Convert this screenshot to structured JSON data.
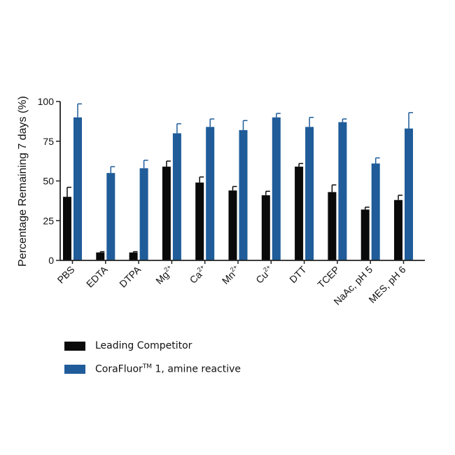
{
  "colors": {
    "competitor": "#0a0a0a",
    "corafluor": "#1f5c99",
    "axis": "#222222"
  },
  "chart_data": {
    "type": "bar",
    "ylabel": "Percentage Remaining 7 days (%)",
    "xlabel": "",
    "ylim": [
      0,
      100
    ],
    "yticks": [
      "0",
      "25",
      "50",
      "75",
      "100"
    ],
    "grid": false,
    "legend_position": "bottom-left",
    "categories": [
      {
        "base": "PBS",
        "sup": ""
      },
      {
        "base": "EDTA",
        "sup": ""
      },
      {
        "base": "DTPA",
        "sup": ""
      },
      {
        "base": "Mg",
        "sup": "2+"
      },
      {
        "base": "Ca",
        "sup": "2+"
      },
      {
        "base": "Mn",
        "sup": "2+"
      },
      {
        "base": "Cu",
        "sup": "2+"
      },
      {
        "base": "DTT",
        "sup": ""
      },
      {
        "base": "TCEP",
        "sup": ""
      },
      {
        "base": "NaAc, pH 5",
        "sup": ""
      },
      {
        "base": "MES, pH 6",
        "sup": ""
      }
    ],
    "series": [
      {
        "name": "Leading Competitor",
        "values": [
          40,
          5,
          5,
          59,
          49,
          44,
          41,
          59,
          43,
          32,
          38
        ],
        "errors": [
          6,
          0.5,
          0.5,
          3.5,
          3.5,
          2.5,
          2.5,
          2,
          4.5,
          1.5,
          3
        ]
      },
      {
        "name": "CoraFluor 1, amine reactive",
        "values": [
          90,
          55,
          58,
          80,
          84,
          82,
          90,
          84,
          87,
          61,
          83
        ],
        "errors": [
          8.5,
          4,
          5,
          6,
          5,
          6,
          2.5,
          6,
          2,
          3.5,
          10
        ]
      }
    ]
  },
  "legend": {
    "items": [
      {
        "label": "Leading Competitor",
        "sup": ""
      },
      {
        "label": "CoraFluor",
        "sup": "TM",
        "suffix": " 1, amine reactive"
      }
    ]
  }
}
